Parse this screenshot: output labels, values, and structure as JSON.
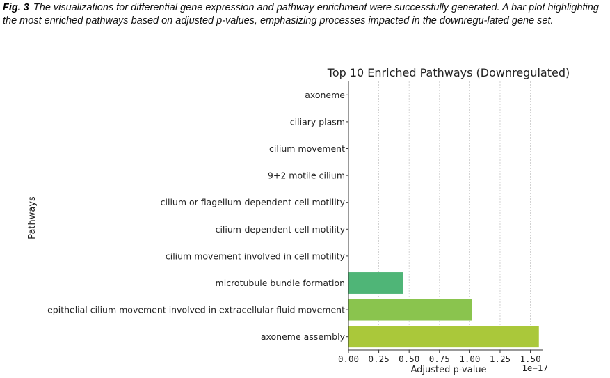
{
  "caption": {
    "fig_label": "Fig. 3",
    "text": "The visualizations for differential gene expression and pathway enrichment were successfully generated. A bar plot highlighting the most enriched pathways based on adjusted p-values, emphasizing processes impacted in the downregu-lated gene set."
  },
  "chart_data": {
    "type": "bar",
    "orientation": "horizontal",
    "title": "Top 10 Enriched Pathways (Downregulated)",
    "xlabel": "Adjusted p-value",
    "ylabel": "Pathways",
    "x_offset_text": "1e−17",
    "xlim": [
      0,
      1.6
    ],
    "xticks": [
      0.0,
      0.25,
      0.5,
      0.75,
      1.0,
      1.25,
      1.5
    ],
    "xtick_labels": [
      "0.00",
      "0.25",
      "0.50",
      "0.75",
      "1.00",
      "1.25",
      "1.50"
    ],
    "grid": "vertical dashed",
    "categories": [
      "axoneme",
      "ciliary plasm",
      "cilium movement",
      "9+2 motile cilium",
      "cilium or flagellum-dependent cell motility",
      "cilium-dependent cell motility",
      "cilium movement involved in cell motility",
      "microtubule bundle formation",
      "epithelial cilium movement involved in extracellular fluid movement",
      "axoneme assembly"
    ],
    "values": [
      0.0,
      0.0,
      0.0,
      0.0,
      0.0,
      0.0,
      0.0,
      0.45,
      1.02,
      1.57
    ],
    "colors": [
      "#440154",
      "#482878",
      "#3e4a89",
      "#31688e",
      "#26828e",
      "#1f9e89",
      "#35b779",
      "#4fb577",
      "#8ac44e",
      "#aac83a"
    ]
  }
}
